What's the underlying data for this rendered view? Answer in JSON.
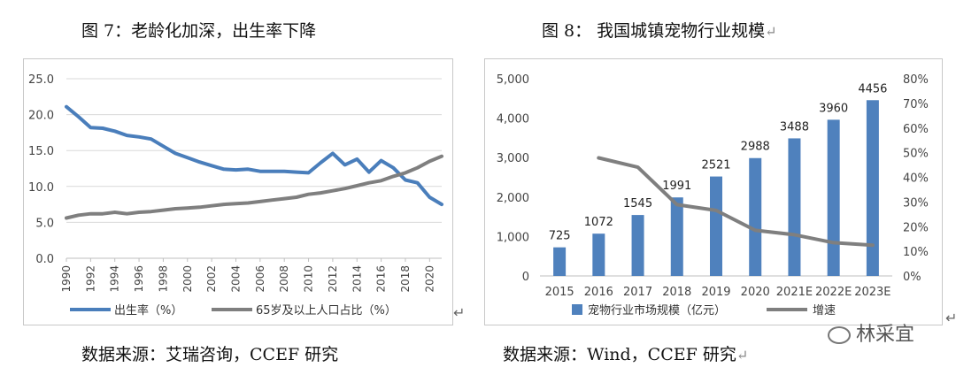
{
  "left": {
    "title": "图 7：老龄化加深，出生率下降",
    "source": "数据来源：艾瑞咨询，CCEF 研究"
  },
  "right": {
    "title": "图 8： 我国城镇宠物行业规模",
    "source": "数据来源：Wind，CCEF 研究"
  },
  "watermark": "林采宜",
  "marks": {
    "left_return": "↵",
    "right_title_return": "↵",
    "right_return": "↵",
    "source_return": "↵"
  },
  "chart_data": [
    {
      "type": "line",
      "title": "",
      "ylim": [
        0,
        25
      ],
      "yticks": [
        "0.0",
        "5.0",
        "10.0",
        "15.0",
        "20.0",
        "25.0"
      ],
      "xticks": [
        "1990",
        "1992",
        "1994",
        "1996",
        "1998",
        "2000",
        "2002",
        "2004",
        "2006",
        "2008",
        "2010",
        "2012",
        "2014",
        "2016",
        "2018",
        "2020"
      ],
      "x": [
        1990,
        1991,
        1992,
        1993,
        1994,
        1995,
        1996,
        1997,
        1998,
        1999,
        2000,
        2001,
        2002,
        2003,
        2004,
        2005,
        2006,
        2007,
        2008,
        2009,
        2010,
        2011,
        2012,
        2013,
        2014,
        2015,
        2016,
        2017,
        2018,
        2019,
        2020,
        2021
      ],
      "grid": true,
      "legend_position": "bottom",
      "series": [
        {
          "name": "出生率（%）",
          "color": "#4a7ebb",
          "values": [
            21.1,
            19.7,
            18.2,
            18.1,
            17.7,
            17.1,
            16.9,
            16.6,
            15.6,
            14.6,
            14.0,
            13.4,
            12.9,
            12.4,
            12.3,
            12.4,
            12.1,
            12.1,
            12.1,
            12.0,
            11.9,
            13.3,
            14.6,
            13.0,
            13.8,
            12.0,
            13.6,
            12.6,
            10.9,
            10.5,
            8.5,
            7.5
          ]
        },
        {
          "name": "65岁及以上人口占比（%）",
          "color": "#7f7f7f",
          "values": [
            5.6,
            6.0,
            6.2,
            6.2,
            6.4,
            6.2,
            6.4,
            6.5,
            6.7,
            6.9,
            7.0,
            7.1,
            7.3,
            7.5,
            7.6,
            7.7,
            7.9,
            8.1,
            8.3,
            8.5,
            8.9,
            9.1,
            9.4,
            9.7,
            10.1,
            10.5,
            10.8,
            11.4,
            11.9,
            12.6,
            13.5,
            14.2
          ]
        }
      ]
    },
    {
      "type": "bar",
      "title": "",
      "categories": [
        "2015",
        "2016",
        "2017",
        "2018",
        "2019",
        "2020",
        "2021E",
        "2022E",
        "2023E"
      ],
      "ylim": [
        0,
        5000
      ],
      "yticks": [
        "0",
        "1,000",
        "2,000",
        "3,000",
        "4,000",
        "5,000"
      ],
      "y2lim": [
        0,
        80
      ],
      "y2ticks": [
        "0%",
        "10%",
        "20%",
        "30%",
        "40%",
        "50%",
        "60%",
        "70%",
        "80%"
      ],
      "grid": false,
      "legend_position": "bottom",
      "series": [
        {
          "name": "宠物行业市场规模（亿元）",
          "type": "bar",
          "color": "#4f81bd",
          "values": [
            725,
            1072,
            1545,
            1991,
            2521,
            2988,
            3488,
            3960,
            4456
          ],
          "labels": [
            "725",
            "1072",
            "1545",
            "1991",
            "2521",
            "2988",
            "3488",
            "3960",
            "4456"
          ]
        },
        {
          "name": "增速",
          "type": "line",
          "axis": "right",
          "color": "#7f7f7f",
          "values": [
            null,
            47.9,
            44.1,
            28.9,
            26.6,
            18.5,
            16.7,
            13.5,
            12.5
          ]
        }
      ]
    }
  ]
}
